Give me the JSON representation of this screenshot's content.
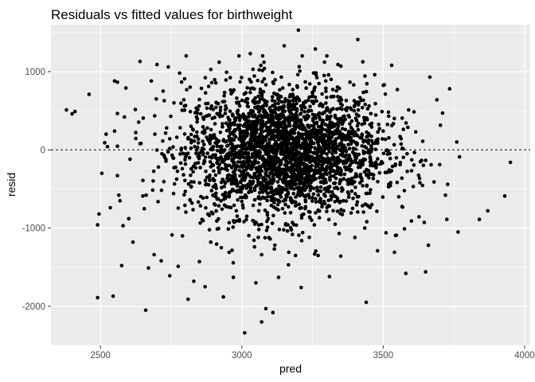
{
  "chart_data": {
    "type": "scatter",
    "title": "Residuals vs fitted values for birthweight",
    "xlabel": "pred",
    "ylabel": "resid",
    "xlim": [
      2325,
      4020
    ],
    "ylim": [
      -2500,
      1600
    ],
    "xticks": [
      2500,
      3000,
      3500,
      4000
    ],
    "xtick_labels": [
      "2500",
      "3000",
      "3500",
      "4000"
    ],
    "yticks": [
      -2000,
      -1000,
      0,
      1000
    ],
    "ytick_labels": [
      "-2000",
      "-1000",
      "0",
      "1000"
    ],
    "grid": true,
    "reference_line": {
      "y": 0,
      "style": "dashed"
    },
    "colors": {
      "panel": "#ebebeb",
      "grid": "#ffffff",
      "point": "#000000",
      "refline": "#000000"
    },
    "points": [
      [
        2380,
        510
      ],
      [
        2400,
        460
      ],
      [
        2410,
        490
      ],
      [
        2460,
        710
      ],
      [
        2490,
        -1890
      ],
      [
        2490,
        -960
      ],
      [
        2495,
        -820
      ],
      [
        2505,
        -300
      ],
      [
        2515,
        90
      ],
      [
        2520,
        200
      ],
      [
        2525,
        40
      ],
      [
        2535,
        -740
      ],
      [
        2545,
        -1870
      ],
      [
        2550,
        880
      ],
      [
        2550,
        240
      ],
      [
        2560,
        -330
      ],
      [
        2565,
        -580
      ],
      [
        2575,
        -1480
      ],
      [
        2580,
        -970
      ],
      [
        2585,
        420
      ],
      [
        2590,
        790
      ],
      [
        2600,
        -880
      ],
      [
        2605,
        -120
      ],
      [
        2615,
        -1180
      ],
      [
        2625,
        220
      ],
      [
        2640,
        1130
      ],
      [
        2650,
        -590
      ],
      [
        2660,
        -2050
      ],
      [
        2670,
        -1510
      ],
      [
        2680,
        880
      ],
      [
        2690,
        -1340
      ],
      [
        2700,
        1090
      ],
      [
        2705,
        -220
      ],
      [
        2715,
        -1420
      ],
      [
        2725,
        -70
      ],
      [
        2740,
        1060
      ],
      [
        2745,
        -1610
      ],
      [
        2760,
        600
      ],
      [
        2775,
        -1490
      ],
      [
        2780,
        980
      ],
      [
        2790,
        -1100
      ],
      [
        2795,
        640
      ],
      [
        2810,
        -1910
      ],
      [
        2830,
        -1680
      ],
      [
        2840,
        420
      ],
      [
        2850,
        -1430
      ],
      [
        2870,
        -1750
      ],
      [
        2880,
        130
      ],
      [
        2890,
        -1180
      ],
      [
        2900,
        -390
      ],
      [
        2920,
        1120
      ],
      [
        2935,
        -1880
      ],
      [
        2945,
        340
      ],
      [
        2955,
        -1310
      ],
      [
        2970,
        -1630
      ],
      [
        2990,
        1200
      ],
      [
        3000,
        -660
      ],
      [
        3010,
        -2340
      ],
      [
        3020,
        560
      ],
      [
        3030,
        1230
      ],
      [
        3045,
        -1240
      ],
      [
        3060,
        -780
      ],
      [
        3070,
        -2200
      ],
      [
        3080,
        1040
      ],
      [
        3085,
        -2030
      ],
      [
        3100,
        -1140
      ],
      [
        3110,
        -2080
      ],
      [
        3120,
        300
      ],
      [
        3130,
        -1630
      ],
      [
        3150,
        1330
      ],
      [
        3155,
        -960
      ],
      [
        3165,
        -1470
      ],
      [
        3180,
        770
      ],
      [
        3190,
        -1350
      ],
      [
        3200,
        1530
      ],
      [
        3210,
        -1760
      ],
      [
        3230,
        150
      ],
      [
        3240,
        -860
      ],
      [
        3260,
        1290
      ],
      [
        3270,
        -1350
      ],
      [
        3280,
        -410
      ],
      [
        3300,
        670
      ],
      [
        3310,
        -1620
      ],
      [
        3320,
        -50
      ],
      [
        3340,
        1090
      ],
      [
        3350,
        -1360
      ],
      [
        3360,
        -780
      ],
      [
        3380,
        420
      ],
      [
        3400,
        -1120
      ],
      [
        3410,
        1410
      ],
      [
        3420,
        -220
      ],
      [
        3435,
        -1000
      ],
      [
        3440,
        -1950
      ],
      [
        3450,
        560
      ],
      [
        3460,
        -700
      ],
      [
        3470,
        960
      ],
      [
        3480,
        -1290
      ],
      [
        3490,
        -180
      ],
      [
        3500,
        240
      ],
      [
        3510,
        -1060
      ],
      [
        3520,
        -440
      ],
      [
        3530,
        1080
      ],
      [
        3540,
        -1310
      ],
      [
        3550,
        770
      ],
      [
        3560,
        -190
      ],
      [
        3575,
        -1010
      ],
      [
        3580,
        -1580
      ],
      [
        3590,
        510
      ],
      [
        3600,
        -910
      ],
      [
        3615,
        230
      ],
      [
        3630,
        -420
      ],
      [
        3640,
        110
      ],
      [
        3650,
        -1560
      ],
      [
        3660,
        -1220
      ],
      [
        3665,
        930
      ],
      [
        3680,
        -410
      ],
      [
        3690,
        640
      ],
      [
        3700,
        -190
      ],
      [
        3710,
        470
      ],
      [
        3720,
        -580
      ],
      [
        3725,
        -890
      ],
      [
        3735,
        780
      ],
      [
        3760,
        100
      ],
      [
        3765,
        -1050
      ],
      [
        3770,
        -90
      ],
      [
        3840,
        -890
      ],
      [
        3870,
        -780
      ],
      [
        3930,
        -590
      ],
      [
        3950,
        -160
      ]
    ],
    "cloud": {
      "count": 2800,
      "x_mean": 3150,
      "x_sd": 175,
      "x_min": 2560,
      "x_max": 3760,
      "y_mean": -20,
      "y_sd": 420,
      "y_min": -1700,
      "y_max": 1200
    }
  }
}
